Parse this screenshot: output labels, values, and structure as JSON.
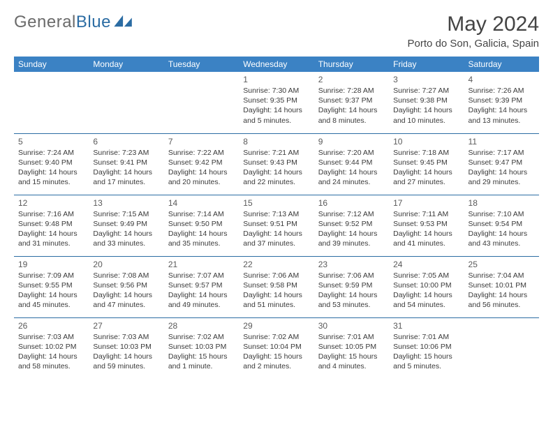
{
  "logo": {
    "text_a": "General",
    "text_b": "Blue"
  },
  "title": "May 2024",
  "location": "Porto do Son, Galicia, Spain",
  "colors": {
    "header_bg": "#3b82c4",
    "border": "#2b6ca3",
    "logo_grey": "#6b6b6b",
    "logo_blue": "#2b6ca3",
    "text": "#333333"
  },
  "weekdays": [
    "Sunday",
    "Monday",
    "Tuesday",
    "Wednesday",
    "Thursday",
    "Friday",
    "Saturday"
  ],
  "weeks": [
    [
      null,
      null,
      null,
      {
        "n": "1",
        "sunrise": "Sunrise: 7:30 AM",
        "sunset": "Sunset: 9:35 PM",
        "daylight": "Daylight: 14 hours and 5 minutes."
      },
      {
        "n": "2",
        "sunrise": "Sunrise: 7:28 AM",
        "sunset": "Sunset: 9:37 PM",
        "daylight": "Daylight: 14 hours and 8 minutes."
      },
      {
        "n": "3",
        "sunrise": "Sunrise: 7:27 AM",
        "sunset": "Sunset: 9:38 PM",
        "daylight": "Daylight: 14 hours and 10 minutes."
      },
      {
        "n": "4",
        "sunrise": "Sunrise: 7:26 AM",
        "sunset": "Sunset: 9:39 PM",
        "daylight": "Daylight: 14 hours and 13 minutes."
      }
    ],
    [
      {
        "n": "5",
        "sunrise": "Sunrise: 7:24 AM",
        "sunset": "Sunset: 9:40 PM",
        "daylight": "Daylight: 14 hours and 15 minutes."
      },
      {
        "n": "6",
        "sunrise": "Sunrise: 7:23 AM",
        "sunset": "Sunset: 9:41 PM",
        "daylight": "Daylight: 14 hours and 17 minutes."
      },
      {
        "n": "7",
        "sunrise": "Sunrise: 7:22 AM",
        "sunset": "Sunset: 9:42 PM",
        "daylight": "Daylight: 14 hours and 20 minutes."
      },
      {
        "n": "8",
        "sunrise": "Sunrise: 7:21 AM",
        "sunset": "Sunset: 9:43 PM",
        "daylight": "Daylight: 14 hours and 22 minutes."
      },
      {
        "n": "9",
        "sunrise": "Sunrise: 7:20 AM",
        "sunset": "Sunset: 9:44 PM",
        "daylight": "Daylight: 14 hours and 24 minutes."
      },
      {
        "n": "10",
        "sunrise": "Sunrise: 7:18 AM",
        "sunset": "Sunset: 9:45 PM",
        "daylight": "Daylight: 14 hours and 27 minutes."
      },
      {
        "n": "11",
        "sunrise": "Sunrise: 7:17 AM",
        "sunset": "Sunset: 9:47 PM",
        "daylight": "Daylight: 14 hours and 29 minutes."
      }
    ],
    [
      {
        "n": "12",
        "sunrise": "Sunrise: 7:16 AM",
        "sunset": "Sunset: 9:48 PM",
        "daylight": "Daylight: 14 hours and 31 minutes."
      },
      {
        "n": "13",
        "sunrise": "Sunrise: 7:15 AM",
        "sunset": "Sunset: 9:49 PM",
        "daylight": "Daylight: 14 hours and 33 minutes."
      },
      {
        "n": "14",
        "sunrise": "Sunrise: 7:14 AM",
        "sunset": "Sunset: 9:50 PM",
        "daylight": "Daylight: 14 hours and 35 minutes."
      },
      {
        "n": "15",
        "sunrise": "Sunrise: 7:13 AM",
        "sunset": "Sunset: 9:51 PM",
        "daylight": "Daylight: 14 hours and 37 minutes."
      },
      {
        "n": "16",
        "sunrise": "Sunrise: 7:12 AM",
        "sunset": "Sunset: 9:52 PM",
        "daylight": "Daylight: 14 hours and 39 minutes."
      },
      {
        "n": "17",
        "sunrise": "Sunrise: 7:11 AM",
        "sunset": "Sunset: 9:53 PM",
        "daylight": "Daylight: 14 hours and 41 minutes."
      },
      {
        "n": "18",
        "sunrise": "Sunrise: 7:10 AM",
        "sunset": "Sunset: 9:54 PM",
        "daylight": "Daylight: 14 hours and 43 minutes."
      }
    ],
    [
      {
        "n": "19",
        "sunrise": "Sunrise: 7:09 AM",
        "sunset": "Sunset: 9:55 PM",
        "daylight": "Daylight: 14 hours and 45 minutes."
      },
      {
        "n": "20",
        "sunrise": "Sunrise: 7:08 AM",
        "sunset": "Sunset: 9:56 PM",
        "daylight": "Daylight: 14 hours and 47 minutes."
      },
      {
        "n": "21",
        "sunrise": "Sunrise: 7:07 AM",
        "sunset": "Sunset: 9:57 PM",
        "daylight": "Daylight: 14 hours and 49 minutes."
      },
      {
        "n": "22",
        "sunrise": "Sunrise: 7:06 AM",
        "sunset": "Sunset: 9:58 PM",
        "daylight": "Daylight: 14 hours and 51 minutes."
      },
      {
        "n": "23",
        "sunrise": "Sunrise: 7:06 AM",
        "sunset": "Sunset: 9:59 PM",
        "daylight": "Daylight: 14 hours and 53 minutes."
      },
      {
        "n": "24",
        "sunrise": "Sunrise: 7:05 AM",
        "sunset": "Sunset: 10:00 PM",
        "daylight": "Daylight: 14 hours and 54 minutes."
      },
      {
        "n": "25",
        "sunrise": "Sunrise: 7:04 AM",
        "sunset": "Sunset: 10:01 PM",
        "daylight": "Daylight: 14 hours and 56 minutes."
      }
    ],
    [
      {
        "n": "26",
        "sunrise": "Sunrise: 7:03 AM",
        "sunset": "Sunset: 10:02 PM",
        "daylight": "Daylight: 14 hours and 58 minutes."
      },
      {
        "n": "27",
        "sunrise": "Sunrise: 7:03 AM",
        "sunset": "Sunset: 10:03 PM",
        "daylight": "Daylight: 14 hours and 59 minutes."
      },
      {
        "n": "28",
        "sunrise": "Sunrise: 7:02 AM",
        "sunset": "Sunset: 10:03 PM",
        "daylight": "Daylight: 15 hours and 1 minute."
      },
      {
        "n": "29",
        "sunrise": "Sunrise: 7:02 AM",
        "sunset": "Sunset: 10:04 PM",
        "daylight": "Daylight: 15 hours and 2 minutes."
      },
      {
        "n": "30",
        "sunrise": "Sunrise: 7:01 AM",
        "sunset": "Sunset: 10:05 PM",
        "daylight": "Daylight: 15 hours and 4 minutes."
      },
      {
        "n": "31",
        "sunrise": "Sunrise: 7:01 AM",
        "sunset": "Sunset: 10:06 PM",
        "daylight": "Daylight: 15 hours and 5 minutes."
      },
      null
    ]
  ]
}
